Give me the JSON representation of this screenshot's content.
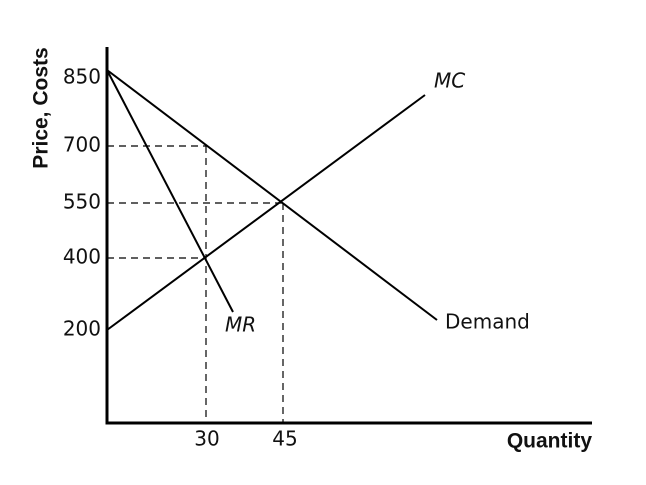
{
  "y_axis": {
    "title": "Price, Costs",
    "ticks": [
      "850",
      "700",
      "550",
      "400",
      "200"
    ]
  },
  "x_axis": {
    "title": "Quantity",
    "ticks": [
      "30",
      "45"
    ]
  },
  "curves": {
    "mc": "MC",
    "mr": "MR",
    "demand": "Demand"
  }
}
